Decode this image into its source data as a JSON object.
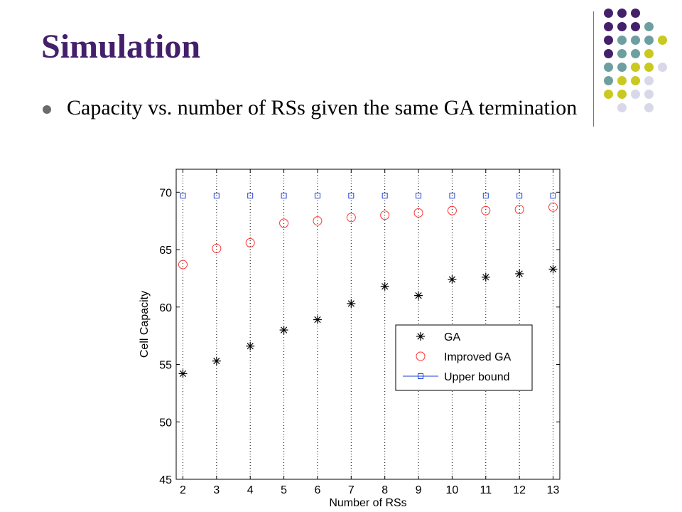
{
  "slide": {
    "title": "Simulation",
    "bullet": "Capacity vs. number of RSs given the same GA termination"
  },
  "decoration": {
    "dot_rows": [
      [
        "#44206b",
        "#44206b",
        "#44206b",
        "",
        ""
      ],
      [
        "#44206b",
        "#44206b",
        "#44206b",
        "#6e9fa0",
        ""
      ],
      [
        "#44206b",
        "#6e9fa0",
        "#6e9fa0",
        "#6e9fa0",
        "#c9c920"
      ],
      [
        "#44206b",
        "#6e9fa0",
        "#6e9fa0",
        "#c9c920",
        ""
      ],
      [
        "#6e9fa0",
        "#6e9fa0",
        "#c9c920",
        "#c9c920",
        "#d8d8e8"
      ],
      [
        "#6e9fa0",
        "#c9c920",
        "#c9c920",
        "#d8d8e8",
        ""
      ],
      [
        "#c9c920",
        "#c9c920",
        "#d8d8e8",
        "#d8d8e8",
        ""
      ],
      [
        "",
        "#d8d8e8",
        "",
        "#d8d8e8",
        ""
      ]
    ]
  },
  "chart_data": {
    "type": "scatter",
    "title": "",
    "xlabel": "Number of RSs",
    "ylabel": "Cell Capacity",
    "x": [
      2,
      3,
      4,
      5,
      6,
      7,
      8,
      9,
      10,
      11,
      12,
      13
    ],
    "xlim": [
      1.8,
      13.2
    ],
    "ylim": [
      45,
      72
    ],
    "xticks": [
      "2",
      "3",
      "4",
      "5",
      "6",
      "7",
      "8",
      "9",
      "10",
      "11",
      "12",
      "13"
    ],
    "yticks": [
      "45",
      "50",
      "55",
      "60",
      "65",
      "70"
    ],
    "grid": "x-dotted",
    "legend_position": "lower-right",
    "series": [
      {
        "name": "GA",
        "marker": "asterisk",
        "color": "#000000",
        "values": [
          54.2,
          55.3,
          56.6,
          58.0,
          58.9,
          60.3,
          61.8,
          61.0,
          62.4,
          62.6,
          62.9,
          63.3
        ]
      },
      {
        "name": "Improved GA",
        "marker": "circle",
        "color": "#ff3333",
        "values": [
          63.7,
          65.1,
          65.6,
          67.3,
          67.5,
          67.8,
          68.0,
          68.2,
          68.4,
          68.4,
          68.5,
          68.7
        ]
      },
      {
        "name": "Upper bound",
        "marker": "square",
        "color": "#1f3fd6",
        "values": [
          69.7,
          69.7,
          69.7,
          69.7,
          69.7,
          69.7,
          69.7,
          69.7,
          69.7,
          69.7,
          69.7,
          69.7
        ]
      }
    ]
  }
}
